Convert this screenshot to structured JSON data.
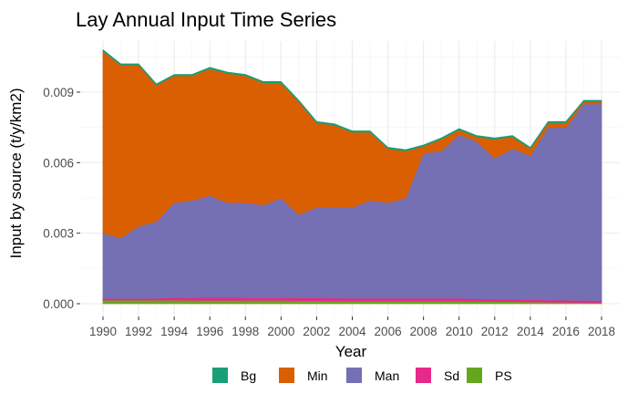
{
  "chart_data": {
    "type": "area",
    "stacked": true,
    "title": "Lay Annual Input Time Series",
    "xlabel": "Year",
    "ylabel": "Input by source (t/y/km2)",
    "xlim": [
      1990,
      2018
    ],
    "ylim": [
      0,
      0.0108
    ],
    "x_ticks": [
      1990,
      1992,
      1994,
      1996,
      1998,
      2000,
      2002,
      2004,
      2006,
      2008,
      2010,
      2012,
      2014,
      2016,
      2018
    ],
    "y_ticks": [
      0.0,
      0.003,
      0.006,
      0.009
    ],
    "y_tick_labels": [
      "0.000",
      "0.003",
      "0.006",
      "0.009"
    ],
    "grid": true,
    "legend_position": "bottom",
    "x": [
      1990,
      1991,
      1992,
      1993,
      1994,
      1995,
      1996,
      1997,
      1998,
      1999,
      2000,
      2001,
      2002,
      2003,
      2004,
      2005,
      2006,
      2007,
      2008,
      2009,
      2010,
      2011,
      2012,
      2013,
      2014,
      2015,
      2016,
      2017,
      2018
    ],
    "series": [
      {
        "name": "PS",
        "color": "#66a61e",
        "values": [
          0.00015,
          0.00015,
          0.00015,
          0.00015,
          0.00015,
          0.00014,
          0.00014,
          0.00014,
          0.00014,
          0.00014,
          0.00014,
          0.00013,
          0.00013,
          0.00012,
          0.00012,
          0.00012,
          0.00012,
          0.00012,
          0.00012,
          0.00012,
          0.00012,
          0.00011,
          0.0001,
          9e-05,
          8e-05,
          7e-05,
          6e-05,
          5e-05,
          4e-05
        ]
      },
      {
        "name": "Sd",
        "color": "#e7298a",
        "values": [
          8e-05,
          8e-05,
          8e-05,
          8e-05,
          0.00012,
          0.00012,
          0.00013,
          0.00013,
          0.00012,
          0.00012,
          0.00012,
          0.00012,
          0.00012,
          0.00012,
          0.00011,
          0.00011,
          0.00011,
          0.00011,
          0.00011,
          0.00011,
          0.00011,
          0.0001,
          0.0001,
          0.0001,
          0.0001,
          9e-05,
          9e-05,
          9e-05,
          9e-05
        ]
      },
      {
        "name": "Man",
        "color": "#7570b3",
        "values": [
          0.00277,
          0.00257,
          0.00307,
          0.00327,
          0.00403,
          0.00414,
          0.00433,
          0.00403,
          0.00404,
          0.00394,
          0.00424,
          0.00355,
          0.00385,
          0.00386,
          0.00387,
          0.00417,
          0.00407,
          0.00427,
          0.00617,
          0.00627,
          0.00697,
          0.00669,
          0.006,
          0.00641,
          0.00612,
          0.00734,
          0.00735,
          0.00836,
          0.00837
        ]
      },
      {
        "name": "Min",
        "color": "#d95f02",
        "values": [
          0.00775,
          0.00735,
          0.00685,
          0.0058,
          0.0054,
          0.0053,
          0.0054,
          0.0055,
          0.0054,
          0.0052,
          0.0049,
          0.0048,
          0.0036,
          0.0035,
          0.0032,
          0.0029,
          0.0023,
          0.002,
          0.0003,
          0.0005,
          0.0002,
          0.0002,
          0.0008,
          0.0005,
          0.0003,
          0.0002,
          0.0002,
          0.0001,
          0.0001
        ]
      },
      {
        "name": "Bg",
        "color": "#1b9e77",
        "values": [
          5e-05,
          5e-05,
          5e-05,
          5e-05,
          5e-05,
          5e-05,
          5e-05,
          5e-05,
          5e-05,
          5e-05,
          5e-05,
          5e-05,
          5e-05,
          5e-05,
          5e-05,
          5e-05,
          5e-05,
          5e-05,
          5e-05,
          5e-05,
          5e-05,
          5e-05,
          5e-05,
          5e-05,
          5e-05,
          5e-05,
          5e-05,
          5e-05,
          5e-05
        ]
      }
    ],
    "legend": [
      {
        "name": "Bg",
        "color": "#1b9e77"
      },
      {
        "name": "Min",
        "color": "#d95f02"
      },
      {
        "name": "Man",
        "color": "#7570b3"
      },
      {
        "name": "Sd",
        "color": "#e7298a"
      },
      {
        "name": "PS",
        "color": "#66a61e"
      }
    ]
  }
}
